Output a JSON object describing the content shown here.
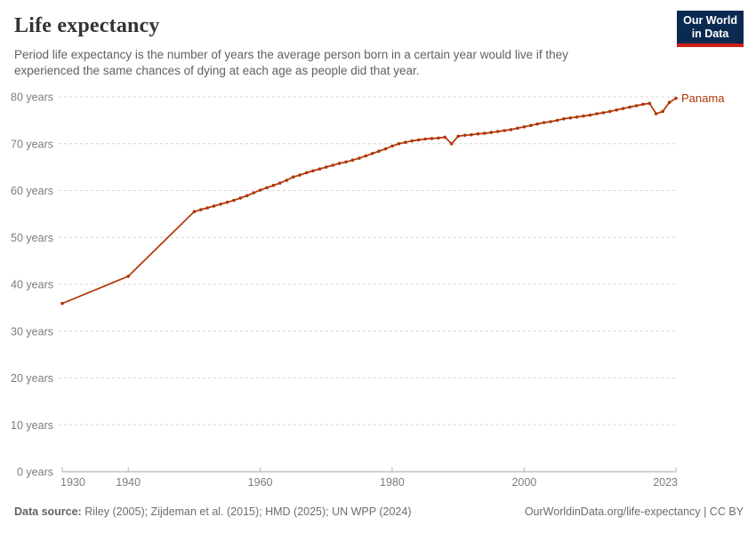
{
  "header": {
    "title": "Life expectancy"
  },
  "subtitle": "Period life expectancy is the number of years the average person born in a certain year would live if they experienced the same chances of dying at each age as people did that year.",
  "logo": {
    "line1": "Our World",
    "line2": "in Data",
    "bg_color": "#0b2a51",
    "accent_color": "#cf2017"
  },
  "footer": {
    "data_source_label": "Data source:",
    "data_source_value": "Riley (2005); Zijdeman et al. (2015); HMD (2025); UN WPP (2024)",
    "link_text": "OurWorldinData.org/life-expectancy | CC BY"
  },
  "chart_data": {
    "type": "line",
    "title": "Life expectancy",
    "entity_label": "Panama",
    "line_color": "#b13507",
    "grid": true,
    "grid_color": "#d5d5d5",
    "axis_color": "#a3a3a3",
    "tick_label_color": "#7c7c7c",
    "x_range": [
      1930,
      2023
    ],
    "y_range": [
      0,
      80
    ],
    "y_ticks": [
      0,
      10,
      20,
      30,
      40,
      50,
      60,
      70,
      80
    ],
    "y_tick_suffix": " years",
    "x_ticks": [
      1930,
      1940,
      1960,
      1980,
      2000,
      2023
    ],
    "series": [
      {
        "name": "Panama",
        "points": [
          [
            1930,
            35.9
          ],
          [
            1940,
            41.7
          ],
          [
            1950,
            55.5
          ],
          [
            1951,
            55.9
          ],
          [
            1952,
            56.3
          ],
          [
            1953,
            56.7
          ],
          [
            1954,
            57.1
          ],
          [
            1955,
            57.5
          ],
          [
            1956,
            57.9
          ],
          [
            1957,
            58.4
          ],
          [
            1958,
            58.9
          ],
          [
            1959,
            59.5
          ],
          [
            1960,
            60.1
          ],
          [
            1961,
            60.6
          ],
          [
            1962,
            61.1
          ],
          [
            1963,
            61.6
          ],
          [
            1964,
            62.2
          ],
          [
            1965,
            62.9
          ],
          [
            1966,
            63.3
          ],
          [
            1967,
            63.8
          ],
          [
            1968,
            64.2
          ],
          [
            1969,
            64.6
          ],
          [
            1970,
            65.0
          ],
          [
            1971,
            65.4
          ],
          [
            1972,
            65.8
          ],
          [
            1973,
            66.1
          ],
          [
            1974,
            66.5
          ],
          [
            1975,
            66.9
          ],
          [
            1976,
            67.4
          ],
          [
            1977,
            67.9
          ],
          [
            1978,
            68.4
          ],
          [
            1979,
            68.9
          ],
          [
            1980,
            69.5
          ],
          [
            1981,
            70.0
          ],
          [
            1982,
            70.3
          ],
          [
            1983,
            70.6
          ],
          [
            1984,
            70.8
          ],
          [
            1985,
            71.0
          ],
          [
            1986,
            71.1
          ],
          [
            1987,
            71.2
          ],
          [
            1988,
            71.4
          ],
          [
            1989,
            70.0
          ],
          [
            1990,
            71.6
          ],
          [
            1991,
            71.8
          ],
          [
            1992,
            71.9
          ],
          [
            1993,
            72.1
          ],
          [
            1994,
            72.2
          ],
          [
            1995,
            72.4
          ],
          [
            1996,
            72.6
          ],
          [
            1997,
            72.8
          ],
          [
            1998,
            73.0
          ],
          [
            1999,
            73.3
          ],
          [
            2000,
            73.6
          ],
          [
            2001,
            73.9
          ],
          [
            2002,
            74.2
          ],
          [
            2003,
            74.5
          ],
          [
            2004,
            74.7
          ],
          [
            2005,
            75.0
          ],
          [
            2006,
            75.3
          ],
          [
            2007,
            75.5
          ],
          [
            2008,
            75.7
          ],
          [
            2009,
            75.9
          ],
          [
            2010,
            76.1
          ],
          [
            2011,
            76.4
          ],
          [
            2012,
            76.6
          ],
          [
            2013,
            76.9
          ],
          [
            2014,
            77.2
          ],
          [
            2015,
            77.5
          ],
          [
            2016,
            77.8
          ],
          [
            2017,
            78.1
          ],
          [
            2018,
            78.4
          ],
          [
            2019,
            78.6
          ],
          [
            2020,
            76.4
          ],
          [
            2021,
            76.9
          ],
          [
            2022,
            78.8
          ],
          [
            2023,
            79.7
          ]
        ]
      }
    ]
  }
}
